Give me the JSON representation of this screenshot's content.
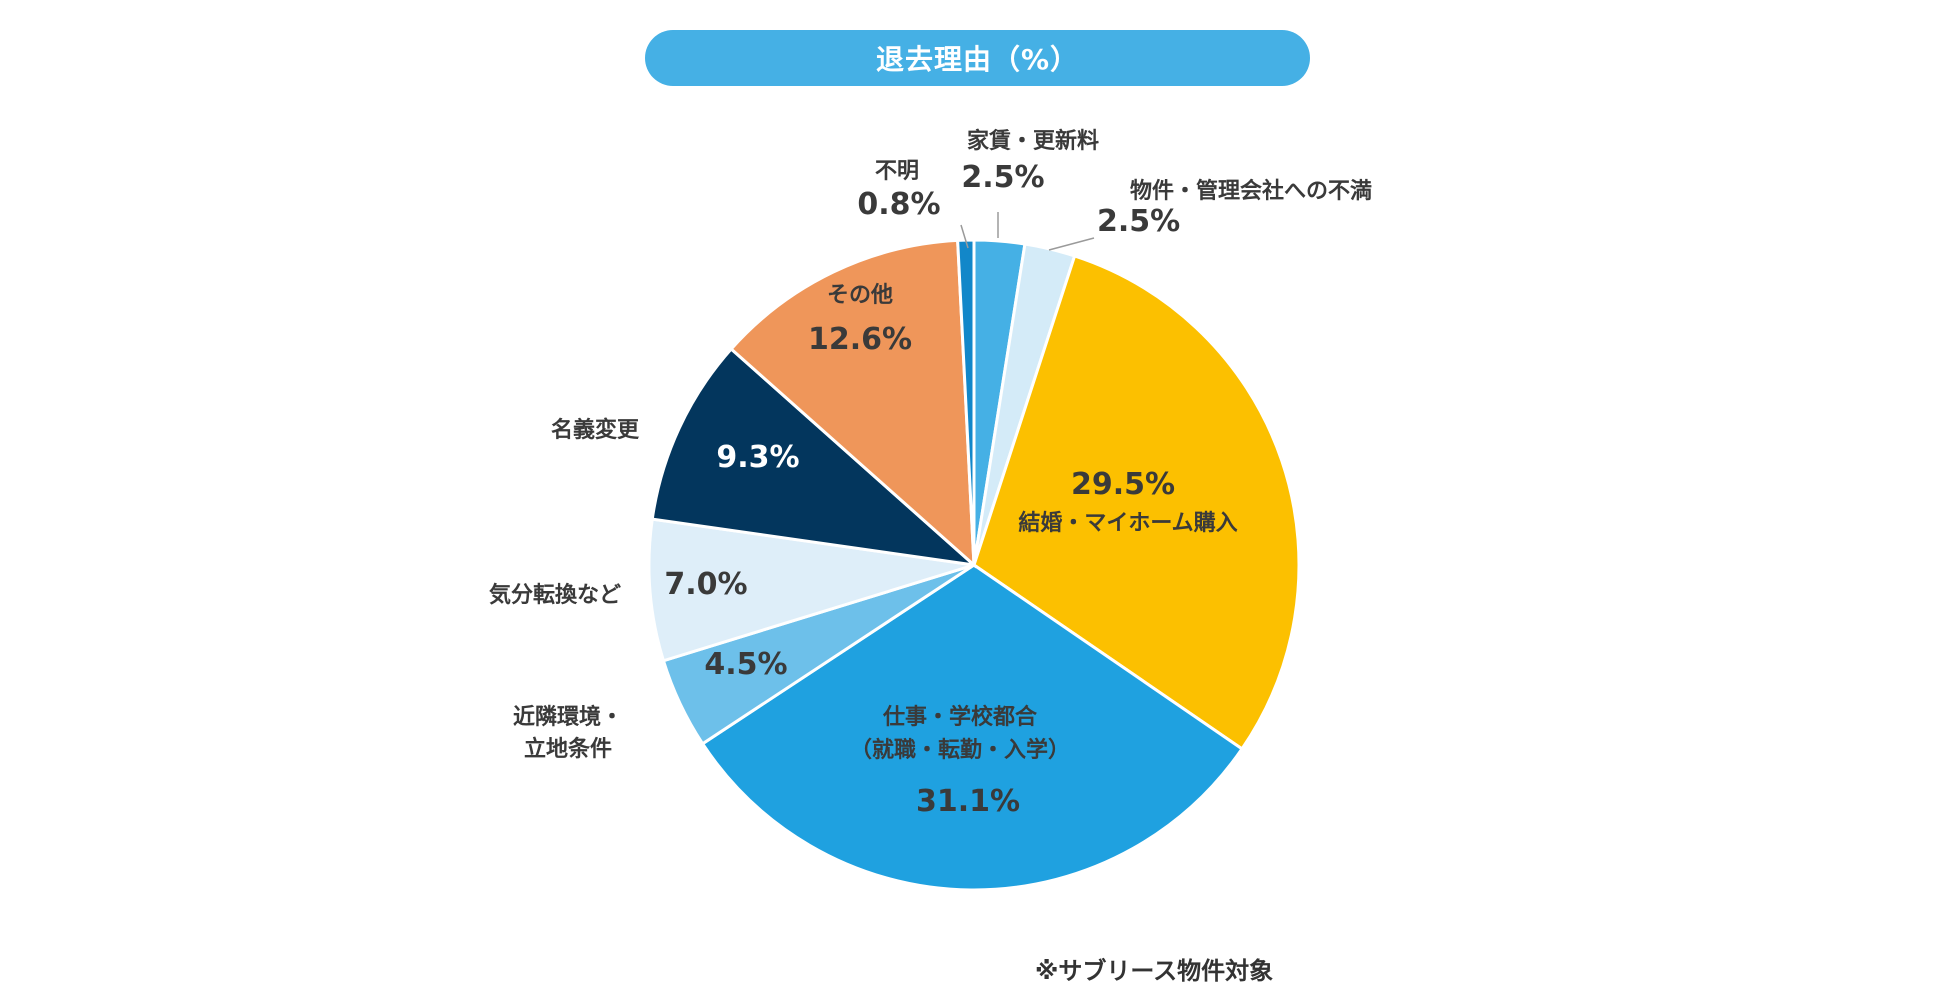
{
  "chart_data": {
    "type": "pie",
    "title": "退去理由（%）",
    "note": "※サブリース物件対象",
    "slices": [
      {
        "label": [
          "家賃・更新料"
        ],
        "value": 2.5,
        "value_text": "2.5%",
        "color": "#45b0e5"
      },
      {
        "label": [
          "物件・管理会社への不満"
        ],
        "value": 2.5,
        "value_text": "2.5%",
        "color": "#d4ebf8"
      },
      {
        "label": [
          "結婚・マイホーム購入"
        ],
        "value": 29.5,
        "value_text": "29.5%",
        "color": "#fcc000"
      },
      {
        "label": [
          "仕事・学校都合",
          "（就職・転勤・入学）"
        ],
        "value": 31.1,
        "value_text": "31.1%",
        "color": "#1fa1e0"
      },
      {
        "label": [
          "近隣環境・",
          "立地条件"
        ],
        "value": 4.5,
        "value_text": "4.5%",
        "color": "#6dc0ea"
      },
      {
        "label": [
          "気分転換など"
        ],
        "value": 7.0,
        "value_text": "7.0%",
        "color": "#deeef9"
      },
      {
        "label": [
          "名義変更"
        ],
        "value": 9.3,
        "value_text": "9.3%",
        "color": "#03365d"
      },
      {
        "label": [
          "その他"
        ],
        "value": 12.6,
        "value_text": "12.6%",
        "color": "#ef965a"
      },
      {
        "label": [
          "不明"
        ],
        "value": 0.8,
        "value_text": "0.8%",
        "color": "#1287c9"
      }
    ]
  }
}
